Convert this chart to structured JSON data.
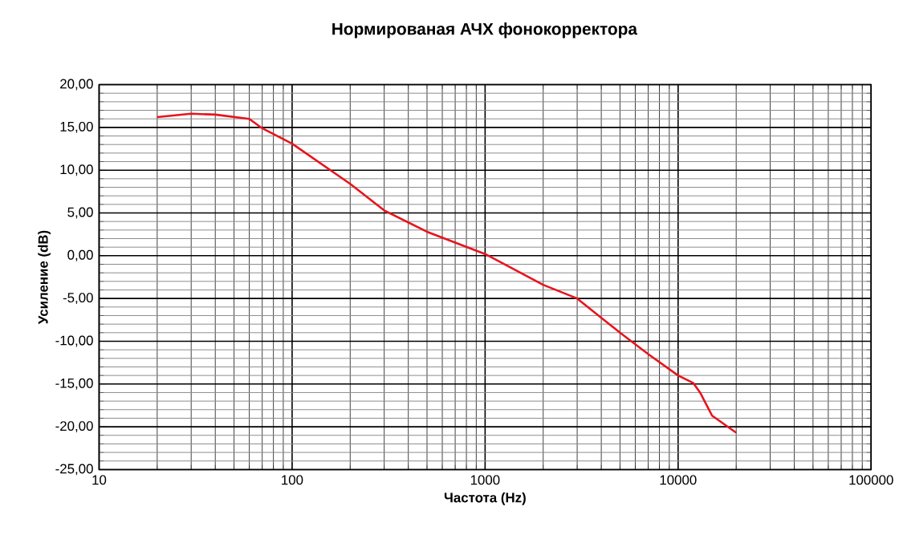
{
  "chart_data": {
    "type": "line",
    "title": "Нормированая АЧХ фонокорректора",
    "xlabel": "Частота (Hz)",
    "ylabel": "Усиление (dB)",
    "log": "x",
    "grid": true,
    "marker": "none",
    "line_style": "solid",
    "xlim": [
      10,
      100000
    ],
    "xticks": [
      10,
      100,
      1000,
      10000,
      100000
    ],
    "ylim": [
      -25,
      20
    ],
    "yticks": [
      {
        "value": -25,
        "label": "-25,00"
      },
      {
        "value": -20,
        "label": "-20,00"
      },
      {
        "value": -15,
        "label": "-15,00"
      },
      {
        "value": -10,
        "label": "-10,00"
      },
      {
        "value": -5,
        "label": "-5,00"
      },
      {
        "value": 0,
        "label": "0,00"
      },
      {
        "value": 5,
        "label": "5,00"
      },
      {
        "value": 10,
        "label": "10,00"
      },
      {
        "value": 15,
        "label": "15,00"
      },
      {
        "value": 20,
        "label": "20,00"
      }
    ],
    "series": [
      {
        "color": "#e8141c",
        "x": [
          20,
          30,
          40,
          60,
          70,
          100,
          200,
          300,
          500,
          1000,
          2000,
          3000,
          5000,
          7000,
          10000,
          12000,
          13000,
          15000,
          20000
        ],
        "values": [
          16.2,
          16.6,
          16.5,
          16.0,
          14.9,
          13.1,
          8.4,
          5.3,
          2.8,
          0.2,
          -3.4,
          -5.0,
          -9.0,
          -11.5,
          -14.0,
          -14.9,
          -16.0,
          -18.7,
          -20.7
        ]
      }
    ]
  }
}
